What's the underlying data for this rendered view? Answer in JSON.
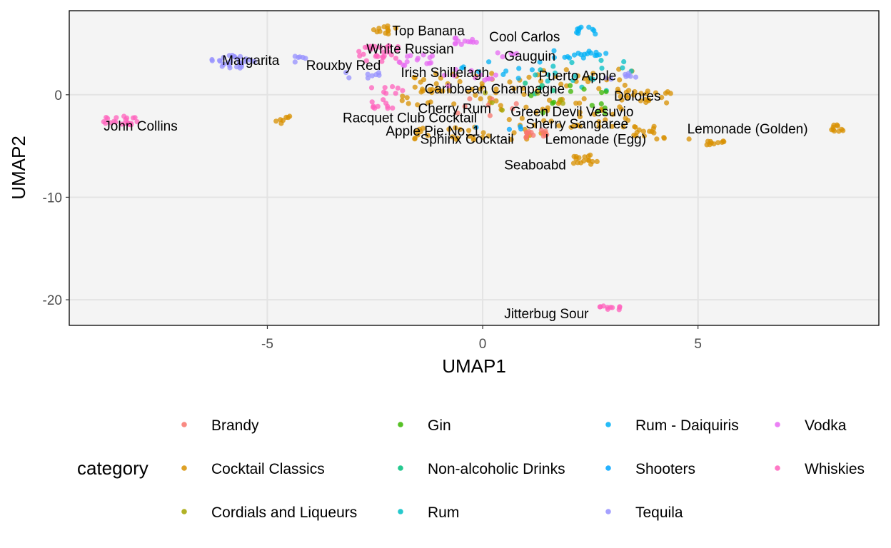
{
  "chart_data": {
    "type": "scatter",
    "xlabel": "UMAP1",
    "ylabel": "UMAP2",
    "xlim": [
      -9.6,
      9.2
    ],
    "ylim": [
      -22.5,
      8.2
    ],
    "x_ticks": [
      -5,
      0,
      5
    ],
    "y_ticks": [
      0,
      -10,
      -20
    ],
    "x_tick_labels": [
      "-5",
      "0",
      "5"
    ],
    "y_tick_labels": [
      "0",
      "-10",
      "-20"
    ],
    "grid": true,
    "legend": {
      "title": "category",
      "placement": "bottom",
      "entries": [
        {
          "name": "Brandy",
          "color": "#F8766D"
        },
        {
          "name": "Cocktail Classics",
          "color": "#D89000"
        },
        {
          "name": "Cordials and Liqueurs",
          "color": "#A3A500"
        },
        {
          "name": "Gin",
          "color": "#39B600"
        },
        {
          "name": "Non-alcoholic Drinks",
          "color": "#00BF7D"
        },
        {
          "name": "Rum",
          "color": "#00BFC4"
        },
        {
          "name": "Rum - Daiquiris",
          "color": "#00B0F6"
        },
        {
          "name": "Shooters",
          "color": "#00A5FF"
        },
        {
          "name": "Tequila",
          "color": "#9590FF"
        },
        {
          "name": "Vodka",
          "color": "#E76BF3"
        },
        {
          "name": "Whiskies",
          "color": "#FF62BC"
        }
      ]
    },
    "labels": [
      {
        "text": "Top Banana",
        "x": -2.1,
        "y": 6.3
      },
      {
        "text": "Cool Carlos",
        "x": 0.15,
        "y": 5.7
      },
      {
        "text": "White Russian",
        "x": -2.7,
        "y": 4.5
      },
      {
        "text": "Gauguin",
        "x": 0.5,
        "y": 3.8
      },
      {
        "text": "Margarita",
        "x": -6.05,
        "y": 3.4
      },
      {
        "text": "Rouxby Red",
        "x": -4.1,
        "y": 2.9
      },
      {
        "text": "Irish Shillelagh",
        "x": -1.9,
        "y": 2.2
      },
      {
        "text": "Puerto Apple",
        "x": 1.3,
        "y": 1.9
      },
      {
        "text": "Caribbean Champagne",
        "x": -1.35,
        "y": 0.6
      },
      {
        "text": "Dolores",
        "x": 3.05,
        "y": -0.1
      },
      {
        "text": "Cherry Rum",
        "x": -1.5,
        "y": -1.3
      },
      {
        "text": "Green Devil Vesuvio",
        "x": 0.65,
        "y": -1.6
      },
      {
        "text": "Racquet Club Cocktail",
        "x": -3.25,
        "y": -2.2
      },
      {
        "text": "Sherry Sangaree",
        "x": 1.0,
        "y": -2.8
      },
      {
        "text": "John Collins",
        "x": -8.8,
        "y": -3.0
      },
      {
        "text": "Lemonade (Golden)",
        "x": 4.75,
        "y": -3.3
      },
      {
        "text": "Apple Pie No. 1",
        "x": -2.25,
        "y": -3.5
      },
      {
        "text": "Sphinx Cocktail",
        "x": -1.45,
        "y": -4.3
      },
      {
        "text": "Lemonade (Egg)",
        "x": 1.45,
        "y": -4.3
      },
      {
        "text": "Seaboabd",
        "x": 0.5,
        "y": -6.8
      },
      {
        "text": "Jitterbug Sour",
        "x": 0.5,
        "y": -21.3
      }
    ],
    "clusters": [
      {
        "category": "Whiskies",
        "x": [
          -8.9,
          -8.0
        ],
        "y": [
          -3.1,
          -2.1
        ],
        "n": 22
      },
      {
        "category": "Tequila",
        "x": [
          -6.3,
          -5.3
        ],
        "y": [
          2.6,
          3.9
        ],
        "n": 28
      },
      {
        "category": "Tequila",
        "x": [
          -4.4,
          -3.9
        ],
        "y": [
          3.0,
          3.8
        ],
        "n": 6
      },
      {
        "category": "Cocktail Classics",
        "x": [
          -4.8,
          -4.4
        ],
        "y": [
          -2.8,
          -2.1
        ],
        "n": 7
      },
      {
        "category": "Cocktail Classics",
        "x": [
          -2.6,
          -2.0
        ],
        "y": [
          5.8,
          6.8
        ],
        "n": 12
      },
      {
        "category": "Vodka",
        "x": [
          -0.7,
          -0.1
        ],
        "y": [
          4.9,
          5.6
        ],
        "n": 12
      },
      {
        "category": "Rum - Daiquiris",
        "x": [
          2.0,
          2.8
        ],
        "y": [
          5.9,
          6.6
        ],
        "n": 10
      },
      {
        "category": "Whiskies",
        "x": [
          -2.9,
          -1.9
        ],
        "y": [
          3.1,
          4.8
        ],
        "n": 28
      },
      {
        "category": "Vodka",
        "x": [
          -2.0,
          -1.0
        ],
        "y": [
          2.8,
          4.0
        ],
        "n": 14
      },
      {
        "category": "Rum - Daiquiris",
        "x": [
          1.6,
          2.9
        ],
        "y": [
          3.5,
          4.3
        ],
        "n": 18
      },
      {
        "category": "Vodka",
        "x": [
          0.3,
          0.8
        ],
        "y": [
          3.7,
          4.1
        ],
        "n": 5
      },
      {
        "category": "Tequila",
        "x": [
          -3.2,
          -2.4
        ],
        "y": [
          1.5,
          2.5
        ],
        "n": 8
      },
      {
        "category": "Whiskies",
        "x": [
          -2.6,
          -1.8
        ],
        "y": [
          0.1,
          0.8
        ],
        "n": 8
      },
      {
        "category": "Whiskies",
        "x": [
          -2.6,
          -2.0
        ],
        "y": [
          -1.4,
          -0.4
        ],
        "n": 10
      },
      {
        "category": "Cocktail Classics",
        "x": [
          -1.9,
          0.4
        ],
        "y": [
          -1.0,
          2.2
        ],
        "n": 45
      },
      {
        "category": "Cocktail Classics",
        "x": [
          0.4,
          3.5
        ],
        "y": [
          -3.2,
          2.5
        ],
        "n": 70
      },
      {
        "category": "Rum",
        "x": [
          1.0,
          3.5
        ],
        "y": [
          0.2,
          3.5
        ],
        "n": 18
      },
      {
        "category": "Gin",
        "x": [
          0.9,
          3.0
        ],
        "y": [
          -2.0,
          1.0
        ],
        "n": 14
      },
      {
        "category": "Tequila",
        "x": [
          2.8,
          3.6
        ],
        "y": [
          1.5,
          2.5
        ],
        "n": 8
      },
      {
        "category": "Cocktail Classics",
        "x": [
          3.2,
          4.4
        ],
        "y": [
          -0.8,
          0.5
        ],
        "n": 20
      },
      {
        "category": "Cocktail Classics",
        "x": [
          3.5,
          4.3
        ],
        "y": [
          -4.4,
          -3.0
        ],
        "n": 16
      },
      {
        "category": "Cocktail Classics",
        "x": [
          -1.6,
          0.3
        ],
        "y": [
          -4.4,
          -3.0
        ],
        "n": 22
      },
      {
        "category": "Cocktail Classics",
        "x": [
          0.6,
          1.5
        ],
        "y": [
          -4.4,
          -2.8
        ],
        "n": 10
      },
      {
        "category": "Brandy",
        "x": [
          0.9,
          1.5
        ],
        "y": [
          -4.2,
          -3.4
        ],
        "n": 14
      },
      {
        "category": "Cocktail Classics",
        "x": [
          2.1,
          2.7
        ],
        "y": [
          -6.8,
          -5.8
        ],
        "n": 16
      },
      {
        "category": "Cocktail Classics",
        "x": [
          5.2,
          5.6
        ],
        "y": [
          -4.9,
          -4.5
        ],
        "n": 10
      },
      {
        "category": "Cocktail Classics",
        "x": [
          7.8,
          8.4
        ],
        "y": [
          -3.6,
          -2.9
        ],
        "n": 10
      },
      {
        "category": "Cocktail Classics",
        "x": [
          4.7,
          4.9
        ],
        "y": [
          -4.4,
          -4.2
        ],
        "n": 1
      },
      {
        "category": "Whiskies",
        "x": [
          2.7,
          3.2
        ],
        "y": [
          -21.0,
          -20.6
        ],
        "n": 10
      },
      {
        "category": "Vodka",
        "x": [
          -1.0,
          0.8
        ],
        "y": [
          0.8,
          2.5
        ],
        "n": 12
      },
      {
        "category": "Rum - Daiquiris",
        "x": [
          -0.5,
          1.5
        ],
        "y": [
          1.5,
          3.5
        ],
        "n": 10
      },
      {
        "category": "Non-alcoholic Drinks",
        "x": [
          0.8,
          1.7
        ],
        "y": [
          0.0,
          1.2
        ],
        "n": 5
      },
      {
        "category": "Brandy",
        "x": [
          -1.2,
          1.2
        ],
        "y": [
          -2.6,
          0.2
        ],
        "n": 8
      },
      {
        "category": "Cordials and Liqueurs",
        "x": [
          0.0,
          2.0
        ],
        "y": [
          -1.5,
          0.5
        ],
        "n": 6
      },
      {
        "category": "Shooters",
        "x": [
          -0.3,
          1.0
        ],
        "y": [
          -4.0,
          -2.5
        ],
        "n": 4
      }
    ]
  }
}
